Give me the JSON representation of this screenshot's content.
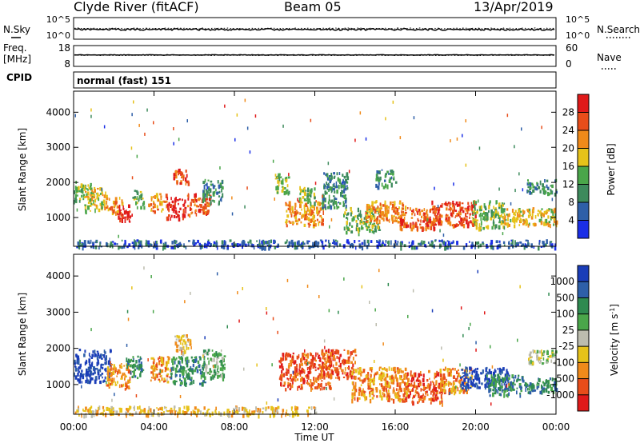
{
  "header": {
    "station": "Clyde River (fitACF)",
    "beam": "Beam 05",
    "date": "13/Apr/2019"
  },
  "panel_nsky": {
    "left_label": "N.Sky",
    "left_ticks": [
      "10^5",
      "10^0"
    ],
    "right_label": "N.Search",
    "right_ticks": [
      "10^5",
      "10^0"
    ],
    "sky_level": 0.45,
    "search_level": 0.5
  },
  "panel_freq": {
    "left_label_1": "Freq.",
    "left_label_2": "[MHz]",
    "left_ticks": [
      "18",
      "8"
    ],
    "right_label": "Nave",
    "right_ticks": [
      "60",
      "0"
    ],
    "freq_level": 0.55,
    "nave_level": 0.3
  },
  "cpid": {
    "label": "CPID",
    "value": "normal (fast) 151"
  },
  "time_axis": {
    "xlabel": "Time UT",
    "ticks": [
      "00:00",
      "04:00",
      "08:00",
      "12:00",
      "16:00",
      "20:00",
      "00:00"
    ]
  },
  "colors": {
    "power_scale": [
      "#1a2ee6",
      "#2e5fa8",
      "#3d8a5c",
      "#4aa64a",
      "#e6c21a",
      "#f08a1a",
      "#e84d1a",
      "#e01a1a"
    ],
    "velocity_scale": [
      "#e01a1a",
      "#e84d1a",
      "#f08a1a",
      "#e6c21a",
      "#bcbcae",
      "#4aa64a",
      "#2f8a50",
      "#2e5fa8",
      "#1a3db8"
    ]
  },
  "chart_data": [
    {
      "type": "heatmap",
      "title": "",
      "xlabel": "Time UT",
      "ylabel": "Slant Range [km]",
      "ylim": [
        180,
        4600
      ],
      "y_ticks": [
        1000,
        2000,
        3000,
        4000
      ],
      "colorbar": {
        "label": "Power [dB]",
        "ticks": [
          "4",
          "8",
          "12",
          "16",
          "20",
          "24",
          "28"
        ],
        "range": [
          0,
          32
        ]
      },
      "blobs": [
        {
          "t0": 0.0,
          "t1": 0.9,
          "r0": 1500,
          "r1": 2000,
          "level": 3
        },
        {
          "t0": 0.5,
          "t1": 1.6,
          "r0": 1200,
          "r1": 1900,
          "level": 4
        },
        {
          "t0": 1.6,
          "t1": 2.4,
          "r0": 1150,
          "r1": 1600,
          "level": 5
        },
        {
          "t0": 2.2,
          "t1": 2.9,
          "r0": 900,
          "r1": 1400,
          "level": 7
        },
        {
          "t0": 2.9,
          "t1": 3.5,
          "r0": 1300,
          "r1": 1800,
          "level": 3
        },
        {
          "t0": 3.7,
          "t1": 4.6,
          "r0": 1200,
          "r1": 1700,
          "level": 5
        },
        {
          "t0": 4.6,
          "t1": 5.6,
          "r0": 1000,
          "r1": 1600,
          "level": 7
        },
        {
          "t0": 5.6,
          "t1": 6.8,
          "r0": 1100,
          "r1": 1700,
          "level": 6
        },
        {
          "t0": 6.4,
          "t1": 7.4,
          "r0": 1400,
          "r1": 2100,
          "level": 2
        },
        {
          "t0": 4.9,
          "t1": 5.7,
          "r0": 2000,
          "r1": 2400,
          "level": 6
        },
        {
          "t0": 10.0,
          "t1": 10.7,
          "r0": 1700,
          "r1": 2300,
          "level": 3
        },
        {
          "t0": 10.5,
          "t1": 12.4,
          "r0": 800,
          "r1": 1500,
          "level": 5
        },
        {
          "t0": 11.2,
          "t1": 12.0,
          "r0": 1400,
          "r1": 1900,
          "level": 3
        },
        {
          "t0": 12.3,
          "t1": 13.6,
          "r0": 1300,
          "r1": 2300,
          "level": 2
        },
        {
          "t0": 13.4,
          "t1": 15.2,
          "r0": 600,
          "r1": 1300,
          "level": 3
        },
        {
          "t0": 14.5,
          "t1": 16.5,
          "r0": 900,
          "r1": 1500,
          "level": 5
        },
        {
          "t0": 16.2,
          "t1": 18.0,
          "r0": 700,
          "r1": 1300,
          "level": 6
        },
        {
          "t0": 17.8,
          "t1": 20.0,
          "r0": 800,
          "r1": 1500,
          "level": 6
        },
        {
          "t0": 19.8,
          "t1": 21.4,
          "r0": 700,
          "r1": 1500,
          "level": 3
        },
        {
          "t0": 21.4,
          "t1": 24.0,
          "r0": 800,
          "r1": 1300,
          "level": 4
        },
        {
          "t0": 22.5,
          "t1": 24.0,
          "r0": 1700,
          "r1": 2100,
          "level": 2
        },
        {
          "t0": 15.0,
          "t1": 16.0,
          "r0": 1900,
          "r1": 2400,
          "level": 2
        },
        {
          "t0": 0.0,
          "t1": 24.0,
          "r0": 180,
          "r1": 380,
          "level": 1
        }
      ]
    },
    {
      "type": "heatmap",
      "title": "",
      "xlabel": "Time UT",
      "ylabel": "Slant Range [km]",
      "ylim": [
        180,
        4600
      ],
      "y_ticks": [
        1000,
        2000,
        3000,
        4000
      ],
      "colorbar": {
        "label": "Velocity [m s^-1]",
        "ticks": [
          "-1000",
          "-500",
          "-100",
          "-25",
          "25",
          "100",
          "500",
          "1000"
        ],
        "range": [
          -1200,
          1200
        ]
      },
      "blobs": [
        {
          "t0": 0.0,
          "t1": 1.8,
          "r0": 1100,
          "r1": 2000,
          "level": 8
        },
        {
          "t0": 1.6,
          "t1": 2.8,
          "r0": 900,
          "r1": 1600,
          "level": 2
        },
        {
          "t0": 2.6,
          "t1": 3.4,
          "r0": 1200,
          "r1": 1800,
          "level": 6
        },
        {
          "t0": 3.8,
          "t1": 4.8,
          "r0": 1100,
          "r1": 1800,
          "level": 2
        },
        {
          "t0": 4.8,
          "t1": 6.5,
          "r0": 1000,
          "r1": 1800,
          "level": 6
        },
        {
          "t0": 5.0,
          "t1": 5.8,
          "r0": 1900,
          "r1": 2400,
          "level": 3
        },
        {
          "t0": 6.4,
          "t1": 7.5,
          "r0": 1200,
          "r1": 2000,
          "level": 5
        },
        {
          "t0": 10.2,
          "t1": 12.8,
          "r0": 900,
          "r1": 1900,
          "level": 1
        },
        {
          "t0": 12.3,
          "t1": 14.0,
          "r0": 1200,
          "r1": 2000,
          "level": 1
        },
        {
          "t0": 13.8,
          "t1": 16.6,
          "r0": 600,
          "r1": 1500,
          "level": 2
        },
        {
          "t0": 16.4,
          "t1": 18.4,
          "r0": 500,
          "r1": 1400,
          "level": 1
        },
        {
          "t0": 18.2,
          "t1": 19.8,
          "r0": 800,
          "r1": 1500,
          "level": 2
        },
        {
          "t0": 19.2,
          "t1": 21.6,
          "r0": 900,
          "r1": 1500,
          "level": 8
        },
        {
          "t0": 20.5,
          "t1": 22.3,
          "r0": 700,
          "r1": 1300,
          "level": 6
        },
        {
          "t0": 22.3,
          "t1": 24.0,
          "r0": 800,
          "r1": 1200,
          "level": 6
        },
        {
          "t0": 22.6,
          "t1": 24.0,
          "r0": 1600,
          "r1": 2000,
          "level": 4
        },
        {
          "t0": 0.0,
          "t1": 12.0,
          "r0": 180,
          "r1": 420,
          "level": 3
        }
      ]
    }
  ]
}
